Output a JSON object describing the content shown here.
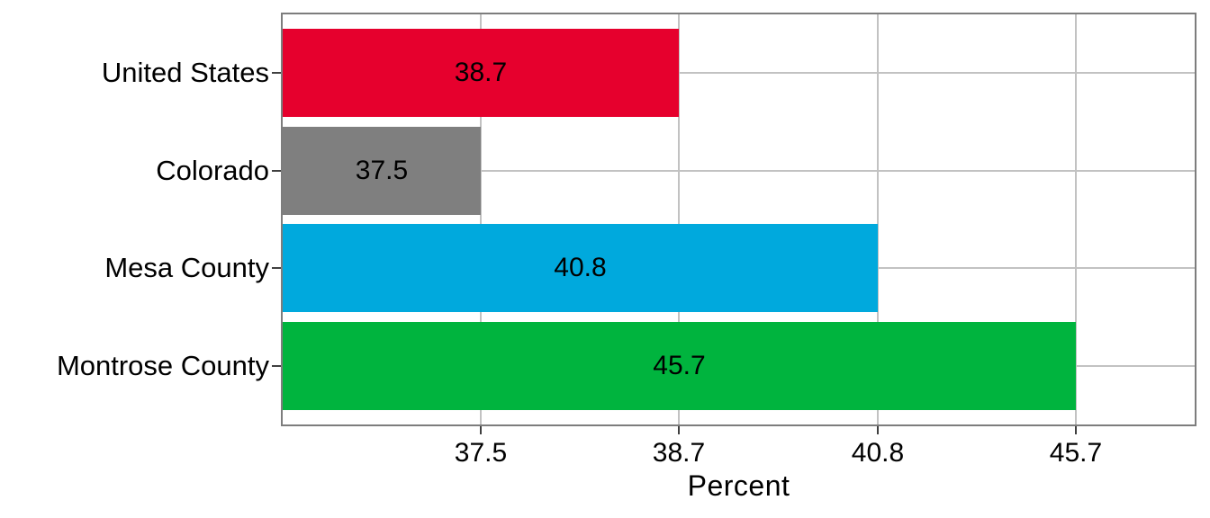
{
  "chart_data": {
    "type": "bar",
    "orientation": "horizontal",
    "title": "",
    "xlabel": "Percent",
    "ylabel": "",
    "categories": [
      "United States",
      "Colorado",
      "Mesa County",
      "Montrose County"
    ],
    "values": [
      38.7,
      37.5,
      40.8,
      45.7
    ],
    "value_labels": [
      "38.7",
      "37.5",
      "40.8",
      "45.7"
    ],
    "bar_colors": [
      "#e6002d",
      "#7f7f7f",
      "#00a9dd",
      "#00b43e"
    ],
    "x_ticks": [
      "37.5",
      "38.7",
      "40.8",
      "45.7"
    ],
    "x_tick_values": [
      37.5,
      38.7,
      40.8,
      45.7
    ],
    "grid": true,
    "legend": false,
    "layout_hints": {
      "x_axis_style": "ticks evenly spaced by ascending value rank (non-linear); each bar ends exactly at its value's gridline",
      "gridlines": "vertical at each tick and horizontal at each category center, drawn behind bars",
      "value_label_position": "centered inside bar"
    },
    "colors": {
      "background": "#ffffff",
      "panel_border": "#7d7d7d",
      "gridline": "#c2c2c2",
      "tick_mark": "#404040",
      "text": "#000000"
    }
  }
}
